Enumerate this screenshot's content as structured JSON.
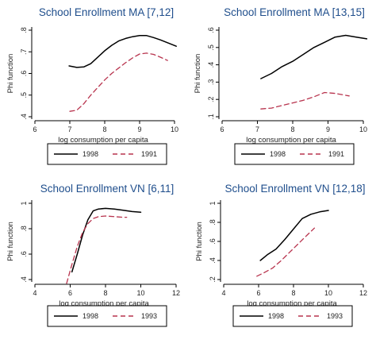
{
  "chart_data": [
    {
      "type": "line",
      "title": "School Enrollment MA [7,12]",
      "xlabel": "log consumption per capita",
      "ylabel": "Phi function",
      "xlim": [
        6,
        10
      ],
      "ylim": [
        0.4,
        0.8
      ],
      "xticks": [
        6,
        7,
        8,
        9,
        10
      ],
      "yticks": [
        0.4,
        0.5,
        0.6,
        0.7,
        0.8
      ],
      "xtick_labels": [
        "6",
        "7",
        "8",
        "9",
        "10"
      ],
      "ytick_labels": [
        ".4",
        ".5",
        ".6",
        ".7",
        ".8"
      ],
      "series": [
        {
          "name": "1998",
          "color": "#000000",
          "dash": "solid",
          "x": [
            6.98,
            7.2,
            7.4,
            7.6,
            7.8,
            8.0,
            8.2,
            8.4,
            8.6,
            8.8,
            9.0,
            9.2,
            9.4,
            9.6,
            9.8,
            10.05
          ],
          "y": [
            0.635,
            0.628,
            0.63,
            0.645,
            0.675,
            0.705,
            0.73,
            0.75,
            0.762,
            0.77,
            0.775,
            0.775,
            0.766,
            0.755,
            0.742,
            0.726
          ]
        },
        {
          "name": "1991",
          "color": "#b8344e",
          "dash": "dashed",
          "x": [
            7.0,
            7.2,
            7.4,
            7.6,
            7.8,
            8.0,
            8.2,
            8.4,
            8.6,
            8.8,
            9.0,
            9.2,
            9.4,
            9.6,
            9.8
          ],
          "y": [
            0.425,
            0.43,
            0.46,
            0.5,
            0.535,
            0.57,
            0.6,
            0.625,
            0.65,
            0.672,
            0.69,
            0.694,
            0.688,
            0.675,
            0.66
          ]
        }
      ],
      "legend": {
        "position": "bottom",
        "labels": [
          "1998",
          "1991"
        ]
      }
    },
    {
      "type": "line",
      "title": "School Enrollment MA [13,15]",
      "xlabel": "log consumption per capita",
      "ylabel": "Phi function",
      "xlim": [
        6,
        10
      ],
      "ylim": [
        0.1,
        0.6
      ],
      "xticks": [
        6,
        7,
        8,
        9,
        10
      ],
      "yticks": [
        0.1,
        0.2,
        0.3,
        0.4,
        0.5,
        0.6
      ],
      "xtick_labels": [
        "6",
        "7",
        "8",
        "9",
        "10"
      ],
      "ytick_labels": [
        ".1",
        ".2",
        ".3",
        ".4",
        ".5",
        ".6"
      ],
      "series": [
        {
          "name": "1998",
          "color": "#000000",
          "dash": "solid",
          "x": [
            7.1,
            7.4,
            7.7,
            8.0,
            8.3,
            8.6,
            8.9,
            9.2,
            9.5,
            9.8,
            10.1
          ],
          "y": [
            0.32,
            0.35,
            0.39,
            0.42,
            0.46,
            0.5,
            0.53,
            0.56,
            0.57,
            0.56,
            0.55
          ]
        },
        {
          "name": "1991",
          "color": "#b8344e",
          "dash": "dashed",
          "x": [
            7.1,
            7.4,
            7.7,
            8.0,
            8.3,
            8.6,
            8.9,
            9.2,
            9.6
          ],
          "y": [
            0.145,
            0.15,
            0.165,
            0.18,
            0.195,
            0.215,
            0.24,
            0.235,
            0.22
          ]
        }
      ],
      "legend": {
        "position": "bottom",
        "labels": [
          "1998",
          "1991"
        ]
      }
    },
    {
      "type": "line",
      "title": "School Enrollment VN [6,11]",
      "xlabel": "log consumption per capita",
      "ylabel": "Phi function",
      "xlim": [
        4,
        12
      ],
      "ylim": [
        0.4,
        1.0
      ],
      "xticks": [
        4,
        6,
        8,
        10,
        12
      ],
      "yticks": [
        0.4,
        0.6,
        0.8,
        1.0
      ],
      "xtick_labels": [
        "4",
        "6",
        "8",
        "10",
        "12"
      ],
      "ytick_labels": [
        ".4",
        ".6",
        ".8",
        "1"
      ],
      "series": [
        {
          "name": "1998",
          "color": "#000000",
          "dash": "solid",
          "x": [
            6.1,
            6.4,
            6.7,
            7.0,
            7.3,
            7.6,
            8.0,
            8.5,
            9.0,
            9.5,
            10.0
          ],
          "y": [
            0.46,
            0.6,
            0.75,
            0.87,
            0.94,
            0.955,
            0.96,
            0.955,
            0.945,
            0.935,
            0.93
          ]
        },
        {
          "name": "1993",
          "color": "#b8344e",
          "dash": "dashed",
          "x": [
            5.8,
            6.1,
            6.4,
            6.7,
            7.0,
            7.3,
            7.6,
            8.0,
            8.5,
            9.0,
            9.2
          ],
          "y": [
            0.37,
            0.52,
            0.66,
            0.77,
            0.84,
            0.88,
            0.895,
            0.9,
            0.895,
            0.89,
            0.89
          ]
        }
      ],
      "legend": {
        "position": "bottom",
        "labels": [
          "1998",
          "1993"
        ]
      }
    },
    {
      "type": "line",
      "title": "School Enrollment VN [12,18]",
      "xlabel": "log consumption per capita",
      "ylabel": "Phi function",
      "xlim": [
        4,
        12
      ],
      "ylim": [
        0.2,
        1.0
      ],
      "xticks": [
        4,
        6,
        8,
        10,
        12
      ],
      "yticks": [
        0.2,
        0.4,
        0.6,
        0.8,
        1.0
      ],
      "xtick_labels": [
        "4",
        "6",
        "8",
        "10",
        "12"
      ],
      "ytick_labels": [
        ".2",
        ".4",
        ".6",
        ".8",
        "1"
      ],
      "series": [
        {
          "name": "1998",
          "color": "#000000",
          "dash": "solid",
          "x": [
            6.1,
            6.5,
            7.0,
            7.5,
            8.0,
            8.5,
            9.0,
            9.5,
            10.0
          ],
          "y": [
            0.4,
            0.46,
            0.52,
            0.62,
            0.73,
            0.84,
            0.885,
            0.91,
            0.925
          ]
        },
        {
          "name": "1993",
          "color": "#b8344e",
          "dash": "dashed",
          "x": [
            5.9,
            6.3,
            6.8,
            7.3,
            7.8,
            8.3,
            8.8,
            9.2
          ],
          "y": [
            0.235,
            0.27,
            0.32,
            0.4,
            0.49,
            0.58,
            0.67,
            0.74
          ]
        }
      ],
      "legend": {
        "position": "bottom",
        "labels": [
          "1998",
          "1993"
        ]
      }
    }
  ]
}
